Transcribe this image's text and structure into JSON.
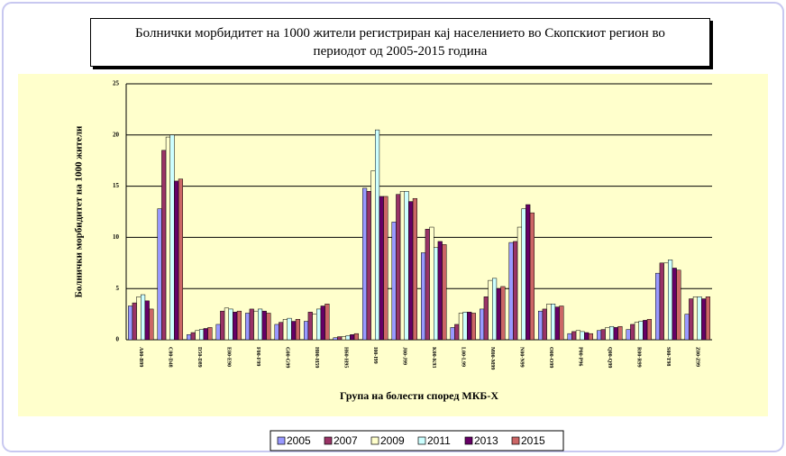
{
  "chart_data": {
    "type": "bar",
    "title": "Болнички морбидитет на 1000 жители регистриран кај населението во Скопскиот регион во периодот од 2005-2015 година",
    "y_label": "Болнички морбидитет на 1000 жители",
    "x_label": "Група на болести според МКБ-Х",
    "categories": [
      "A00-B99",
      "C00-D48",
      "D50-D89",
      "E00-E90",
      "F00-F99",
      "G00-G99",
      "H00-H59",
      "H60-H95",
      "I00-I99",
      "J00-J99",
      "K00-K93",
      "L00-L99",
      "M00-M99",
      "N00-N99",
      "O00-O99",
      "P00-P96",
      "Q00-Q99",
      "R00-R99",
      "S00-T98",
      "Z00-Z99"
    ],
    "series": [
      {
        "name": "2005",
        "color": "#9999ff",
        "values": [
          3.3,
          12.8,
          0.5,
          1.5,
          2.6,
          1.5,
          1.8,
          0.2,
          14.8,
          11.5,
          8.5,
          1.2,
          3.0,
          9.5,
          2.8,
          0.6,
          0.9,
          1.0,
          6.5,
          2.5
        ]
      },
      {
        "name": "2007",
        "color": "#993366",
        "values": [
          3.6,
          18.5,
          0.7,
          2.8,
          3.0,
          1.7,
          2.7,
          0.3,
          14.5,
          14.2,
          10.8,
          1.5,
          4.2,
          9.6,
          3.0,
          0.8,
          1.0,
          1.5,
          7.5,
          4.0
        ]
      },
      {
        "name": "2009",
        "color": "#ffffcc",
        "values": [
          4.2,
          19.8,
          0.9,
          3.1,
          2.8,
          2.0,
          2.5,
          0.3,
          16.5,
          14.5,
          11.0,
          2.6,
          5.8,
          11.0,
          3.5,
          0.9,
          1.2,
          1.7,
          7.5,
          4.2
        ]
      },
      {
        "name": "2011",
        "color": "#ccffff",
        "values": [
          4.4,
          20.0,
          1.0,
          3.0,
          3.0,
          2.1,
          3.0,
          0.4,
          20.5,
          14.5,
          9.0,
          2.7,
          6.0,
          12.8,
          3.5,
          0.8,
          1.3,
          1.8,
          7.8,
          4.2
        ]
      },
      {
        "name": "2013",
        "color": "#660066",
        "values": [
          3.8,
          15.5,
          1.1,
          2.7,
          2.8,
          1.8,
          3.3,
          0.5,
          14.0,
          13.5,
          9.6,
          2.7,
          5.0,
          13.2,
          3.2,
          0.7,
          1.2,
          1.9,
          7.0,
          4.0
        ]
      },
      {
        "name": "2015",
        "color": "#cc6666",
        "values": [
          3.0,
          15.7,
          1.2,
          2.8,
          2.6,
          2.0,
          3.5,
          0.6,
          14.0,
          13.8,
          9.3,
          2.6,
          5.2,
          12.4,
          3.3,
          0.6,
          1.3,
          2.0,
          6.8,
          4.2
        ]
      }
    ],
    "ylim": [
      0,
      25
    ],
    "yticks": [
      0,
      5,
      10,
      15,
      20,
      25
    ],
    "grid": true,
    "legend": "bottom"
  }
}
